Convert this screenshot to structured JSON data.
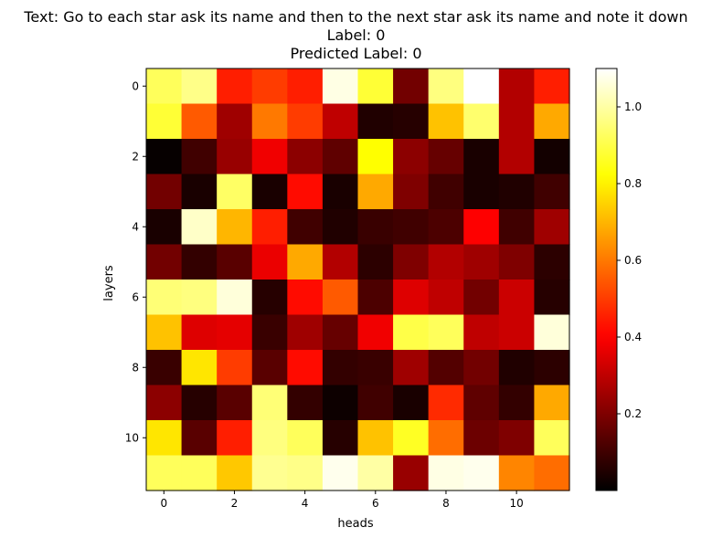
{
  "chart_data": {
    "type": "heatmap",
    "title_lines": [
      "Text: Go to each star ask its name and then to the next star ask its name and note it down",
      "Label: 0",
      "Predicted Label: 0"
    ],
    "xlabel": "heads",
    "ylabel": "layers",
    "x_ticks": [
      0,
      2,
      4,
      6,
      8,
      10
    ],
    "y_ticks": [
      0,
      2,
      4,
      6,
      8,
      10
    ],
    "colormap": "hot",
    "color_range": [
      0.0,
      1.1
    ],
    "colorbar_ticks": [
      0.2,
      0.4,
      0.6,
      0.8,
      1.0
    ],
    "colorbar_tick_labels": [
      "0.2",
      "0.4",
      "0.6",
      "0.8",
      "1.0"
    ],
    "rows": 12,
    "cols": 12,
    "values": [
      [
        0.92,
        0.97,
        0.45,
        0.5,
        0.45,
        1.07,
        0.88,
        0.18,
        0.96,
        1.1,
        0.28,
        0.45
      ],
      [
        0.88,
        0.55,
        0.25,
        0.6,
        0.5,
        0.3,
        0.05,
        0.06,
        0.72,
        0.94,
        0.28,
        0.68
      ],
      [
        0.01,
        0.1,
        0.24,
        0.38,
        0.22,
        0.15,
        0.82,
        0.22,
        0.16,
        0.04,
        0.28,
        0.03
      ],
      [
        0.18,
        0.04,
        0.93,
        0.04,
        0.42,
        0.04,
        0.68,
        0.2,
        0.1,
        0.04,
        0.05,
        0.1
      ],
      [
        0.04,
        1.04,
        0.7,
        0.45,
        0.1,
        0.05,
        0.09,
        0.1,
        0.12,
        0.4,
        0.1,
        0.25
      ],
      [
        0.18,
        0.08,
        0.14,
        0.37,
        0.68,
        0.28,
        0.07,
        0.2,
        0.28,
        0.25,
        0.2,
        0.07
      ],
      [
        0.95,
        0.96,
        1.06,
        0.06,
        0.42,
        0.55,
        0.12,
        0.35,
        0.3,
        0.18,
        0.32,
        0.06
      ],
      [
        0.72,
        0.35,
        0.36,
        0.09,
        0.25,
        0.16,
        0.38,
        0.9,
        0.92,
        0.3,
        0.32,
        1.06
      ],
      [
        0.09,
        0.78,
        0.5,
        0.14,
        0.42,
        0.08,
        0.09,
        0.25,
        0.13,
        0.18,
        0.05,
        0.07
      ],
      [
        0.22,
        0.06,
        0.14,
        0.95,
        0.08,
        0.02,
        0.1,
        0.04,
        0.47,
        0.15,
        0.08,
        0.68
      ],
      [
        0.78,
        0.14,
        0.45,
        0.96,
        0.92,
        0.06,
        0.72,
        0.86,
        0.58,
        0.17,
        0.2,
        0.92
      ],
      [
        0.92,
        0.92,
        0.73,
        0.98,
        0.97,
        1.08,
        1.0,
        0.24,
        1.07,
        1.08,
        0.62,
        0.58
      ]
    ]
  }
}
